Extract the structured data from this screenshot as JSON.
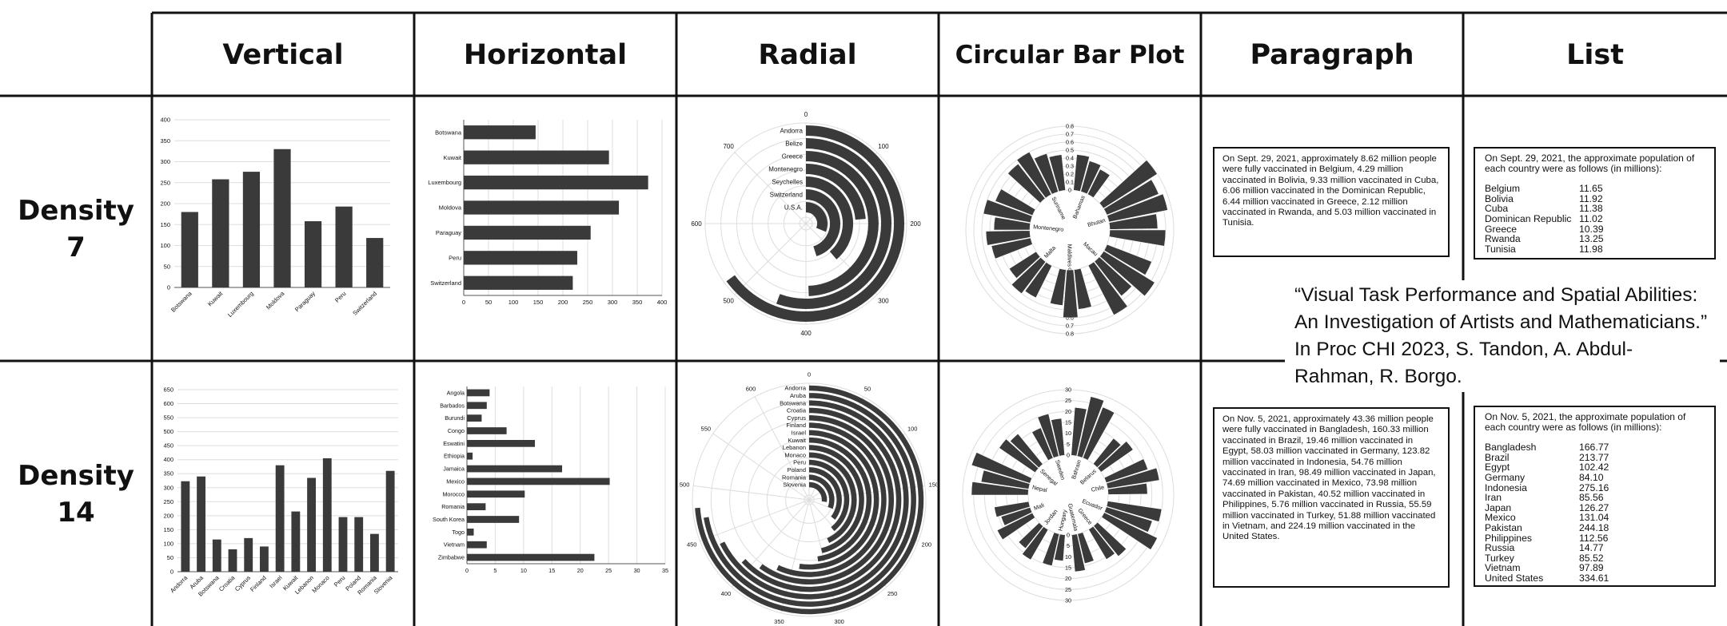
{
  "columns": [
    "Vertical",
    "Horizontal",
    "Radial",
    "Circular Bar Plot",
    "Paragraph",
    "List"
  ],
  "rows": [
    {
      "label_line1": "Density",
      "label_line2": "7"
    },
    {
      "label_line1": "Density",
      "label_line2": "14"
    }
  ],
  "citation": "“Visual Task Performance and Spatial Abilities: An Investigation of Artists and Mathematicians.” In Proc CHI 2023, S. Tandon, A. Abdul-Rahman, R. Borgo.",
  "paragraph_d7": "On Sept. 29, 2021, approximately 8.62 million people were fully vaccinated in Belgium, 4.29 million vaccinated in Bolivia, 9.33 million vaccinated in Cuba, 6.06 million vaccinated in the Dominican Republic, 6.44 million vaccinated in Greece, 2.12 million vaccinated in Rwanda, and 5.03 million vaccinated in Tunisia.",
  "paragraph_d14": "On Nov. 5, 2021, approximately 43.36 million people were fully vaccinated in Bangladesh, 160.33 million vaccinated in Brazil, 19.46 million vaccinated in Egypt, 58.03 million vaccinated in Germany, 123.82 million vaccinated in Indonesia, 54.76 million vaccinated in Iran, 98.49 million vaccinated in Japan, 74.69 million vaccinated in Mexico, 73.98 million vaccinated in Pakistan, 40.52 million vaccinated in Philippines, 5.76 million vaccinated in Russia, 55.59 million vaccinated in Turkey, 51.88 million vaccinated in Vietnam, and 224.19 million vaccinated in the United States.",
  "list_d7": {
    "intro": "On Sept. 29, 2021, the approximate population of each country were as follows (in millions):",
    "items": [
      {
        "country": "Belgium",
        "value": "11.65"
      },
      {
        "country": "Bolivia",
        "value": "11.92"
      },
      {
        "country": "Cuba",
        "value": "11.38"
      },
      {
        "country": "Dominican Republic",
        "value": "11.02"
      },
      {
        "country": "Greece",
        "value": "10.39"
      },
      {
        "country": "Rwanda",
        "value": "13.25"
      },
      {
        "country": "Tunisia",
        "value": "11.98"
      }
    ]
  },
  "list_d14": {
    "intro": "On Nov. 5, 2021, the approximate population of each country were as follows (in millions):",
    "items": [
      {
        "country": "Bangladesh",
        "value": "166.77"
      },
      {
        "country": "Brazil",
        "value": "213.77"
      },
      {
        "country": "Egypt",
        "value": "102.42"
      },
      {
        "country": "Germany",
        "value": "84.10"
      },
      {
        "country": "Indonesia",
        "value": "275.16"
      },
      {
        "country": "Iran",
        "value": "85.56"
      },
      {
        "country": "Japan",
        "value": "126.27"
      },
      {
        "country": "Mexico",
        "value": "131.04"
      },
      {
        "country": "Pakistan",
        "value": "244.18"
      },
      {
        "country": "Philippines",
        "value": "112.56"
      },
      {
        "country": "Russia",
        "value": "14.77"
      },
      {
        "country": "Turkey",
        "value": "85.52"
      },
      {
        "country": "Vietnam",
        "value": "97.89"
      },
      {
        "country": "United States",
        "value": "334.61"
      }
    ]
  },
  "colors": {
    "bar": "#3a3a3a",
    "grid": "#dddddd",
    "text": "#111111",
    "border": "#111111"
  },
  "chart_data": [
    {
      "id": "vertical-d7",
      "type": "bar",
      "orientation": "vertical",
      "categories": [
        "Botswana",
        "Kuwait",
        "Luxembourg",
        "Moldova",
        "Paraguay",
        "Peru",
        "Switzerland"
      ],
      "values": [
        180,
        258,
        276,
        330,
        158,
        193,
        118
      ],
      "ylim": [
        0,
        400
      ],
      "yticks": [
        0,
        50,
        100,
        150,
        200,
        250,
        300,
        350,
        400
      ]
    },
    {
      "id": "horizontal-d7",
      "type": "bar",
      "orientation": "horizontal",
      "categories": [
        "Botswana",
        "Kuwait",
        "Luxembourg",
        "Moldova",
        "Paraguay",
        "Peru",
        "Switzerland"
      ],
      "values": [
        145,
        293,
        372,
        313,
        256,
        229,
        220
      ],
      "xlim": [
        0,
        400
      ],
      "xticks": [
        0,
        50,
        100,
        150,
        200,
        250,
        300,
        350,
        400
      ]
    },
    {
      "id": "radial-d7",
      "type": "bar",
      "orientation": "radial",
      "categories": [
        "Andorra",
        "Belize",
        "Greece",
        "Montenegro",
        "Seychelles",
        "Switzerland",
        "U.S.A."
      ],
      "values": [
        520,
        445,
        395,
        190,
        310,
        360,
        250
      ],
      "max": 800,
      "ticks": [
        0,
        100,
        200,
        300,
        400,
        500,
        600,
        700
      ]
    },
    {
      "id": "circular-d7",
      "type": "bar",
      "orientation": "circular",
      "groups": [
        {
          "name": "Bahamas",
          "values": [
            0.45,
            0.4,
            0.35
          ]
        },
        {
          "name": "Bhutan",
          "values": [
            0.8,
            0.7,
            0.75,
            0.6,
            0.7
          ]
        },
        {
          "name": "Macau",
          "values": [
            0.6,
            0.75,
            0.55,
            0.7
          ]
        },
        {
          "name": "Maldives",
          "values": [
            0.5,
            0.6,
            0.45
          ]
        },
        {
          "name": "Malta",
          "values": [
            0.45,
            0.5,
            0.4
          ]
        },
        {
          "name": "Montenegro",
          "values": [
            0.5,
            0.55,
            0.45,
            0.6,
            0.5
          ]
        },
        {
          "name": "Suriname",
          "values": [
            0.55,
            0.6,
            0.5,
            0.45
          ]
        }
      ],
      "ylim": [
        0,
        0.8
      ],
      "ticks": [
        "0",
        "0.1",
        "0.2",
        "0.3",
        "0.4",
        "0.5",
        "0.6",
        "0.7",
        "0.8"
      ]
    },
    {
      "id": "vertical-d14",
      "type": "bar",
      "orientation": "vertical",
      "categories": [
        "Andorra",
        "Aruba",
        "Botswana",
        "Croatia",
        "Cyprus",
        "Finland",
        "Israel",
        "Kuwait",
        "Lebanon",
        "Monaco",
        "Peru",
        "Poland",
        "Romania",
        "Slovenia"
      ],
      "values": [
        323,
        340,
        115,
        80,
        120,
        90,
        380,
        215,
        335,
        405,
        195,
        195,
        135,
        360
      ],
      "ylim": [
        0,
        650
      ],
      "yticks": [
        0,
        50,
        100,
        150,
        200,
        250,
        300,
        350,
        400,
        450,
        500,
        550,
        600,
        650
      ]
    },
    {
      "id": "horizontal-d14",
      "type": "bar",
      "orientation": "horizontal",
      "categories": [
        "Angola",
        "Barbados",
        "Burundi",
        "Congo",
        "Eswatini",
        "Ethiopia",
        "Jamaica",
        "Mexico",
        "Morocco",
        "Romania",
        "South Korea",
        "Togo",
        "Vietnam",
        "Zimbabwe"
      ],
      "values": [
        4,
        3.5,
        2.6,
        7,
        12,
        1,
        16.8,
        25.2,
        10.2,
        3.3,
        9.2,
        1.2,
        3.5,
        22.5
      ],
      "xlim": [
        0,
        35
      ],
      "xticks": [
        0,
        5,
        10,
        15,
        20,
        25,
        30,
        35
      ]
    },
    {
      "id": "radial-d14",
      "type": "bar",
      "orientation": "radial",
      "categories": [
        "Andorra",
        "Aruba",
        "Botswana",
        "Croatia",
        "Cyprus",
        "Finland",
        "Israel",
        "Kuwait",
        "Lebanon",
        "Monaco",
        "Peru",
        "Poland",
        "Romania",
        "Slovenia"
      ],
      "values": [
        480,
        470,
        440,
        410,
        390,
        370,
        340,
        310,
        300,
        280,
        255,
        230,
        200,
        175
      ],
      "max": 650,
      "ticks": [
        0,
        50,
        100,
        150,
        200,
        250,
        300,
        350,
        400,
        450,
        500,
        550,
        600
      ]
    },
    {
      "id": "circular-d14",
      "type": "bar",
      "orientation": "circular",
      "groups": [
        {
          "name": "Bahrain",
          "values": [
            22,
            28,
            25
          ]
        },
        {
          "name": "Belarus",
          "values": [
            15,
            18
          ]
        },
        {
          "name": "Chile",
          "values": [
            20,
            24,
            18
          ]
        },
        {
          "name": "Ecuador",
          "values": [
            25,
            22,
            27
          ]
        },
        {
          "name": "Greece",
          "values": [
            18,
            16
          ]
        },
        {
          "name": "Guatemala",
          "values": [
            14,
            17
          ]
        },
        {
          "name": "Hungary",
          "values": [
            12,
            15
          ]
        },
        {
          "name": "Jordan",
          "values": [
            16,
            13
          ]
        },
        {
          "name": "Mali",
          "values": [
            18,
            14,
            16
          ]
        },
        {
          "name": "Nepal",
          "values": [
            26,
            22,
            28
          ]
        },
        {
          "name": "Senegal",
          "values": [
            20,
            18
          ]
        },
        {
          "name": "Sweden",
          "values": [
            15,
            20,
            17
          ]
        }
      ],
      "ylim": [
        0,
        30
      ],
      "ticks": [
        "0",
        "5",
        "10",
        "15",
        "20",
        "25",
        "30"
      ]
    }
  ]
}
